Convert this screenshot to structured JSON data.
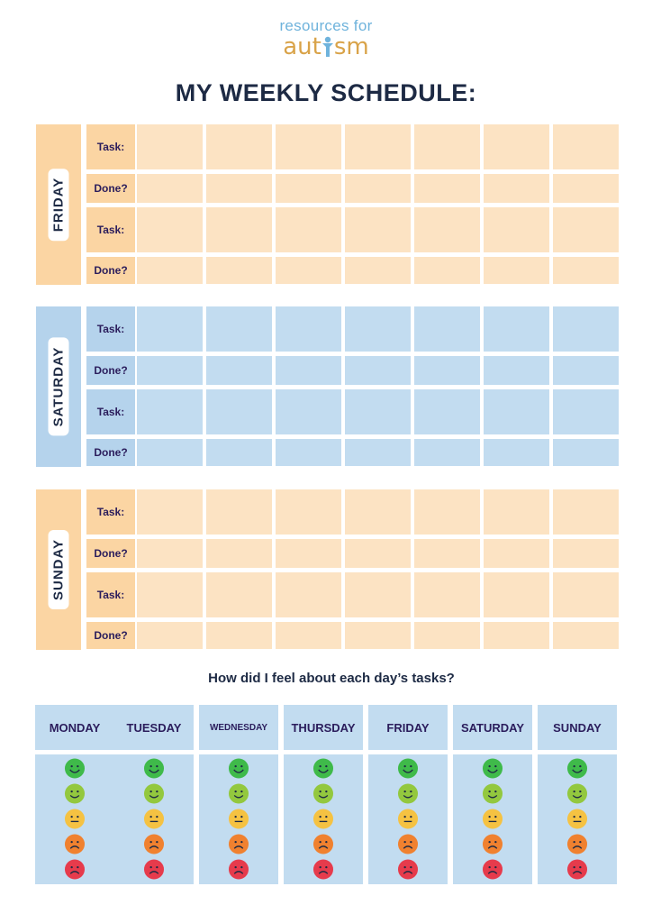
{
  "logo": {
    "line1": "resources for",
    "line2a": "aut",
    "line2b": "sm"
  },
  "title": "MY WEEKLY SCHEDULE:",
  "colors": {
    "peach": "#fce3c3",
    "peach_tab": "#fbd5a3",
    "blue": "#c2dcf0",
    "blue_tab": "#b5d3ec",
    "navy": "#1d2a44",
    "purple": "#2b1d5c"
  },
  "row_labels": {
    "task": "Task:",
    "done": "Done?"
  },
  "days": [
    {
      "name": "FRIDAY",
      "theme": "peach"
    },
    {
      "name": "SATURDAY",
      "theme": "blue"
    },
    {
      "name": "SUNDAY",
      "theme": "peach"
    }
  ],
  "feelings": {
    "question": "How did I feel about each day’s tasks?",
    "days": [
      "MONDAY",
      "TUESDAY",
      "WEDNESDAY",
      "THURSDAY",
      "FRIDAY",
      "SATURDAY",
      "SUNDAY"
    ],
    "faces": [
      {
        "name": "very-happy-face-icon",
        "color": "#3fba4a"
      },
      {
        "name": "happy-face-icon",
        "color": "#93c83e"
      },
      {
        "name": "neutral-face-icon",
        "color": "#f5c242"
      },
      {
        "name": "sad-face-icon",
        "color": "#f0812f"
      },
      {
        "name": "very-sad-face-icon",
        "color": "#e63b4c"
      }
    ]
  }
}
